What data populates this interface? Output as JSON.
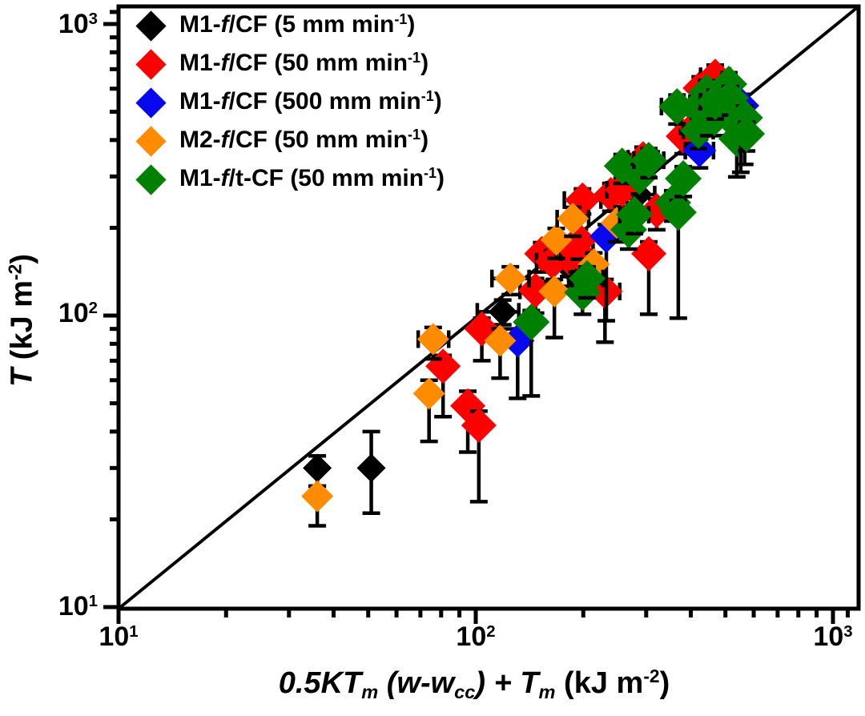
{
  "figure": {
    "background": "#ffffff",
    "frame_color": "#000000"
  },
  "axes": {
    "x": {
      "label_parts": [
        {
          "t": "0.5KT",
          "i": 1
        },
        {
          "t": "m",
          "i": 1,
          "sub": 1
        },
        {
          "t": " (",
          "i": 1
        },
        {
          "t": "w",
          "i": 1
        },
        {
          "t": "-",
          "i": 1
        },
        {
          "t": "w",
          "i": 1
        },
        {
          "t": "cc",
          "i": 1,
          "sub": 1
        },
        {
          "t": ")",
          "i": 1
        },
        {
          "t": " + ",
          "i": 1
        },
        {
          "t": "T",
          "i": 1
        },
        {
          "t": "m",
          "i": 1,
          "sub": 1
        },
        {
          "t": " (kJ m"
        },
        {
          "t": "-2",
          "sup": 1
        },
        {
          "t": ")"
        }
      ],
      "tick_labels": [
        {
          "value": 10,
          "parts": [
            {
              "t": "10"
            },
            {
              "t": "1",
              "sup": 1
            }
          ]
        },
        {
          "value": 100,
          "parts": [
            {
              "t": "10"
            },
            {
              "t": "2",
              "sup": 1
            }
          ]
        },
        {
          "value": 1000,
          "parts": [
            {
              "t": "10"
            },
            {
              "t": "3",
              "sup": 1
            }
          ]
        }
      ],
      "minor_ticks": [
        20,
        30,
        40,
        50,
        60,
        70,
        80,
        90,
        200,
        300,
        400,
        500,
        600,
        700,
        800,
        900,
        1100
      ]
    },
    "y": {
      "label_parts": [
        {
          "t": "T",
          "i": 1
        },
        {
          "t": " (kJ m"
        },
        {
          "t": "-2",
          "sup": 1
        },
        {
          "t": ")"
        }
      ],
      "tick_labels": [
        {
          "value": 10,
          "parts": [
            {
              "t": "10"
            },
            {
              "t": "1",
              "sup": 1
            }
          ]
        },
        {
          "value": 100,
          "parts": [
            {
              "t": "10"
            },
            {
              "t": "2",
              "sup": 1
            }
          ]
        },
        {
          "value": 1000,
          "parts": [
            {
              "t": "10"
            },
            {
              "t": "3",
              "sup": 1
            }
          ]
        }
      ],
      "minor_ticks": [
        20,
        30,
        40,
        50,
        60,
        70,
        80,
        90,
        200,
        300,
        400,
        500,
        600,
        700,
        800,
        900,
        1100
      ]
    }
  },
  "legend": {
    "items": [
      {
        "id": "m1f-cf-5",
        "color": "#000000",
        "parts": [
          {
            "t": "M1-"
          },
          {
            "t": "f",
            "i": 1
          },
          {
            "t": "/CF (5 mm min"
          },
          {
            "t": "-1",
            "sup": 1
          },
          {
            "t": ")"
          }
        ]
      },
      {
        "id": "m1f-cf-50",
        "color": "#ff0000",
        "parts": [
          {
            "t": "M1-"
          },
          {
            "t": "f",
            "i": 1
          },
          {
            "t": "/CF (50 mm min"
          },
          {
            "t": "-1",
            "sup": 1
          },
          {
            "t": ")"
          }
        ]
      },
      {
        "id": "m1f-cf-500",
        "color": "#0808ee",
        "parts": [
          {
            "t": "M1-"
          },
          {
            "t": "f",
            "i": 1
          },
          {
            "t": "/CF (500 mm min"
          },
          {
            "t": "-1",
            "sup": 1
          },
          {
            "t": ")"
          }
        ]
      },
      {
        "id": "m2f-cf-50",
        "color": "#ff8c00",
        "parts": [
          {
            "t": "M2-"
          },
          {
            "t": "f",
            "i": 1
          },
          {
            "t": "/CF (50 mm min"
          },
          {
            "t": "-1",
            "sup": 1
          },
          {
            "t": ")"
          }
        ]
      },
      {
        "id": "m1ft-cf-50",
        "color": "#008000",
        "parts": [
          {
            "t": "M1-"
          },
          {
            "t": "f",
            "i": 1
          },
          {
            "t": "/t-CF (50 mm min"
          },
          {
            "t": "-1",
            "sup": 1
          },
          {
            "t": ")"
          }
        ]
      }
    ]
  },
  "chart_data": {
    "type": "scatter",
    "title": "",
    "xlabel": "0.5KT_m (w-w_cc) + T_m (kJ m^-2)",
    "ylabel": "T (kJ m^-2)",
    "xscale": "log",
    "yscale": "log",
    "xlim": [
      10,
      1180
    ],
    "ylim": [
      10,
      1170
    ],
    "grid": false,
    "legend_position": "top-left-inside",
    "reference_line": {
      "kind": "identity",
      "equation": "y = x",
      "color": "#000000"
    },
    "marker": "diamond",
    "error_bar_color": "#000000",
    "series": [
      {
        "id": "m1f-cf-5",
        "name": "M1-f/CF (5 mm min^-1)",
        "color": "#000000",
        "size": 18,
        "points": [
          {
            "x": 36,
            "y": 30,
            "yl": 26,
            "yh": 33
          },
          {
            "x": 51,
            "y": 30,
            "yl": 21,
            "yh": 40
          },
          {
            "x": 119,
            "y": 103,
            "yl": 93,
            "yh": 113,
            "xl": 101,
            "xh": 132
          },
          {
            "x": 182,
            "y": 147,
            "yl": 126,
            "yh": 160,
            "xl": 164,
            "xh": 202
          },
          {
            "x": 285,
            "y": 260,
            "yl": 228,
            "yh": 285,
            "xl": 256,
            "xh": 317
          }
        ]
      },
      {
        "id": "m1f-cf-50",
        "name": "M1-f/CF (50 mm min^-1)",
        "color": "#ff0000",
        "size": 22,
        "points": [
          {
            "x": 81,
            "y": 67,
            "yl": 45,
            "yh": 73
          },
          {
            "x": 95,
            "y": 49,
            "yl": 34,
            "yh": 55
          },
          {
            "x": 102,
            "y": 42,
            "yl": 23,
            "yh": 47
          },
          {
            "x": 104,
            "y": 90,
            "yl": 70,
            "yh": 98
          },
          {
            "x": 147,
            "y": 122,
            "yl": 102,
            "yh": 134,
            "xl": 133,
            "xh": 163
          },
          {
            "x": 153,
            "y": 163,
            "yl": 141,
            "yh": 178
          },
          {
            "x": 164,
            "y": 153,
            "yl": 131,
            "yh": 167,
            "xl": 148,
            "xh": 182
          },
          {
            "x": 182,
            "y": 158,
            "yl": 136,
            "yh": 172
          },
          {
            "x": 192,
            "y": 165,
            "yl": 141,
            "yh": 181,
            "xl": 173,
            "xh": 213
          },
          {
            "x": 195,
            "y": 181,
            "yl": 156,
            "yh": 198
          },
          {
            "x": 199,
            "y": 249,
            "yl": 223,
            "yh": 272,
            "xl": 177,
            "xh": 224
          },
          {
            "x": 230,
            "y": 121,
            "yl": 81,
            "yh": 133,
            "xl": 209,
            "xh": 253
          },
          {
            "x": 239,
            "y": 260,
            "yl": 228,
            "yh": 284
          },
          {
            "x": 257,
            "y": 270,
            "yl": 236,
            "yh": 296,
            "xl": 233,
            "xh": 284
          },
          {
            "x": 294,
            "y": 345,
            "yl": 301,
            "yh": 378,
            "xl": 267,
            "xh": 324
          },
          {
            "x": 305,
            "y": 163,
            "yl": 101,
            "yh": 179
          },
          {
            "x": 321,
            "y": 229,
            "yl": 197,
            "yh": 251
          },
          {
            "x": 381,
            "y": 412,
            "yl": 359,
            "yh": 451
          },
          {
            "x": 411,
            "y": 445,
            "yl": 389,
            "yh": 488,
            "xl": 374,
            "xh": 452
          },
          {
            "x": 425,
            "y": 603,
            "yl": 528,
            "yh": 659
          },
          {
            "x": 468,
            "y": 662,
            "yl": 579,
            "yh": 723,
            "xl": 426,
            "xh": 514
          }
        ]
      },
      {
        "id": "m1f-cf-500",
        "name": "M1-f/CF (500 mm min^-1)",
        "color": "#0808ee",
        "size": 21,
        "points": [
          {
            "x": 131,
            "y": 82,
            "yl": 52,
            "yh": 90
          },
          {
            "x": 232,
            "y": 187,
            "yl": 96,
            "yh": 205
          },
          {
            "x": 423,
            "y": 368,
            "yl": 321,
            "yh": 403,
            "xl": 386,
            "xh": 463
          },
          {
            "x": 558,
            "y": 525,
            "yl": 459,
            "yh": 574
          }
        ]
      },
      {
        "id": "m2f-cf-50",
        "name": "M2-f/CF (50 mm min^-1)",
        "color": "#ff8c00",
        "size": 20,
        "points": [
          {
            "x": 36,
            "y": 24,
            "yl": 19,
            "yh": 26
          },
          {
            "x": 74,
            "y": 54,
            "yl": 37,
            "yh": 60
          },
          {
            "x": 76,
            "y": 83,
            "yl": 71,
            "yh": 91,
            "xl": 69,
            "xh": 84
          },
          {
            "x": 117,
            "y": 82,
            "yl": 61,
            "yh": 90
          },
          {
            "x": 125,
            "y": 134,
            "yl": 118,
            "yh": 147,
            "xl": 111,
            "xh": 141
          },
          {
            "x": 166,
            "y": 121,
            "yl": 84,
            "yh": 133
          },
          {
            "x": 168,
            "y": 182,
            "yl": 157,
            "yh": 199
          },
          {
            "x": 187,
            "y": 215,
            "yl": 187,
            "yh": 235,
            "xl": 169,
            "xh": 207
          },
          {
            "x": 214,
            "y": 150,
            "yl": 129,
            "yh": 164
          },
          {
            "x": 248,
            "y": 208,
            "yl": 179,
            "yh": 228
          }
        ]
      },
      {
        "id": "m1ft-cf-50",
        "name": "M1-f/t-CF (50 mm min^-1)",
        "color": "#008000",
        "size": 23,
        "points": [
          {
            "x": 143,
            "y": 95,
            "yl": 53,
            "yh": 104
          },
          {
            "x": 199,
            "y": 120,
            "yl": 101,
            "yh": 131
          },
          {
            "x": 205,
            "y": 134,
            "yl": 115,
            "yh": 147,
            "xl": 186,
            "xh": 227
          },
          {
            "x": 257,
            "y": 326,
            "yl": 284,
            "yh": 357
          },
          {
            "x": 268,
            "y": 197,
            "yl": 169,
            "yh": 216
          },
          {
            "x": 278,
            "y": 222,
            "yl": 191,
            "yh": 243,
            "xl": 253,
            "xh": 305
          },
          {
            "x": 287,
            "y": 300,
            "yl": 261,
            "yh": 329
          },
          {
            "x": 305,
            "y": 341,
            "yl": 297,
            "yh": 374,
            "xl": 277,
            "xh": 336
          },
          {
            "x": 356,
            "y": 244,
            "yl": 211,
            "yh": 268
          },
          {
            "x": 369,
            "y": 226,
            "yl": 98,
            "yh": 248
          },
          {
            "x": 381,
            "y": 295,
            "yl": 256,
            "yh": 324
          },
          {
            "x": 366,
            "y": 521,
            "yl": 454,
            "yh": 571,
            "xl": 331,
            "xh": 404
          },
          {
            "x": 416,
            "y": 515,
            "yl": 449,
            "yh": 564
          },
          {
            "x": 420,
            "y": 431,
            "yl": 374,
            "yh": 472,
            "xl": 381,
            "xh": 462
          },
          {
            "x": 443,
            "y": 583,
            "yl": 509,
            "yh": 639
          },
          {
            "x": 449,
            "y": 477,
            "yl": 414,
            "yh": 523
          },
          {
            "x": 466,
            "y": 477,
            "yl": 414,
            "yh": 523
          },
          {
            "x": 468,
            "y": 541,
            "yl": 472,
            "yh": 593,
            "xl": 426,
            "xh": 514
          },
          {
            "x": 511,
            "y": 622,
            "yl": 544,
            "yh": 681
          },
          {
            "x": 516,
            "y": 558,
            "yl": 487,
            "yh": 611
          },
          {
            "x": 538,
            "y": 404,
            "yl": 299,
            "yh": 443
          },
          {
            "x": 552,
            "y": 439,
            "yl": 310,
            "yh": 481
          },
          {
            "x": 566,
            "y": 477,
            "yl": 330,
            "yh": 523
          },
          {
            "x": 573,
            "y": 420,
            "yl": 367,
            "yh": 460
          }
        ]
      }
    ]
  }
}
